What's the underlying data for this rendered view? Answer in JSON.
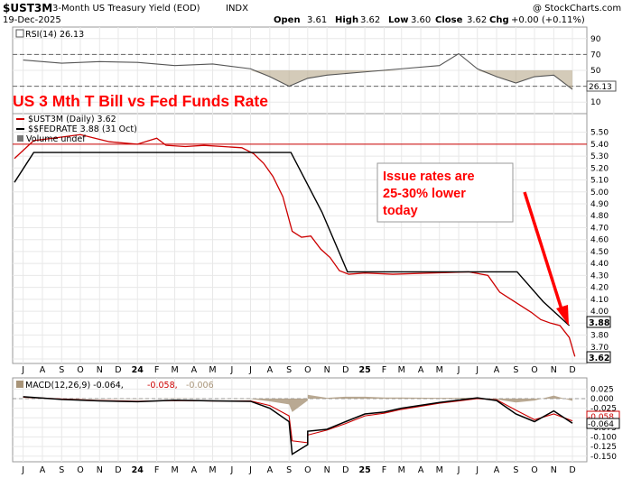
{
  "header": {
    "symbol": "$UST3M",
    "name": "3-Month US Treasury Yield (EOD)",
    "exchange": "INDX",
    "date": "19-Dec-2025",
    "watermark": "@ StockCharts.com",
    "ohlc": {
      "open_label": "Open",
      "open": "3.61",
      "high_label": "High",
      "high": "3.62",
      "low_label": "Low",
      "low": "3.60",
      "close_label": "Close",
      "close": "3.62",
      "chg_label": "Chg",
      "chg": "+0.00 (+0.11%)"
    }
  },
  "colors": {
    "price": "#cc0000",
    "fed": "#000000",
    "rsi": "#555555",
    "rsi_fill": "#b8a88a",
    "macd_line": "#000000",
    "macd_signal": "#cc0000",
    "histogram": "#a89478",
    "annotation": "#ff0000",
    "grid": "#e8e8e8"
  },
  "annotations": {
    "title": "US 3 Mth T Bill vs Fed Funds Rate",
    "note_lines": [
      "Issue rates are",
      "25-30% lower",
      "today"
    ]
  },
  "chart_data": [
    {
      "type": "line",
      "panel": "rsi",
      "legend": "RSI(14) 26.13",
      "last_value_label": "26.13",
      "ylim": [
        0,
        100
      ],
      "y_ticks": [
        "90",
        "70",
        "50",
        "30",
        "10"
      ],
      "reference_lines": [
        70,
        30
      ],
      "series": [
        {
          "name": "RSI(14)",
          "x": [
            "2023-07",
            "2023-09",
            "2023-11",
            "2024-01",
            "2024-03",
            "2024-05",
            "2024-07",
            "2024-08",
            "2024-09",
            "2024-10",
            "2024-11",
            "2025-01",
            "2025-03",
            "2025-05",
            "2025-06",
            "2025-07",
            "2025-08",
            "2025-09",
            "2025-10",
            "2025-11",
            "2025-12"
          ],
          "values": [
            63,
            59,
            61,
            60,
            56,
            58,
            52,
            42,
            30,
            40,
            44,
            48,
            52,
            56,
            71,
            52,
            42,
            34,
            42,
            44,
            26
          ]
        }
      ]
    },
    {
      "type": "line",
      "panel": "price",
      "legend": [
        "$UST3M (Daily) 3.62",
        "$$FEDRATE 3.88 (31 Oct)",
        "Volume undef"
      ],
      "last_value_labels": [
        "3.88",
        "3.62"
      ],
      "ylim": [
        3.6,
        5.55
      ],
      "y_ticks": [
        "5.50",
        "5.40",
        "5.30",
        "5.20",
        "5.10",
        "5.00",
        "4.90",
        "4.80",
        "4.70",
        "4.60",
        "4.50",
        "4.40",
        "4.30",
        "4.20",
        "4.10",
        "4.00",
        "3.90",
        "3.80",
        "3.70",
        "3.60"
      ],
      "horizontal_line": 5.4,
      "series": [
        {
          "name": "$UST3M",
          "x": [
            "2023-07-01",
            "2023-08-01",
            "2023-09-01",
            "2023-10-15",
            "2023-12-01",
            "2024-01-15",
            "2024-02-15",
            "2024-03-01",
            "2024-04-01",
            "2024-05-01",
            "2024-06-01",
            "2024-07-01",
            "2024-07-20",
            "2024-08-05",
            "2024-08-20",
            "2024-09-05",
            "2024-09-20",
            "2024-10-05",
            "2024-10-20",
            "2024-11-05",
            "2024-11-20",
            "2024-12-05",
            "2024-12-20",
            "2025-01-15",
            "2025-03-01",
            "2025-05-01",
            "2025-07-01",
            "2025-08-01",
            "2025-08-20",
            "2025-09-10",
            "2025-09-25",
            "2025-10-10",
            "2025-10-25",
            "2025-11-10",
            "2025-11-25",
            "2025-12-10",
            "2025-12-19"
          ],
          "values": [
            5.28,
            5.43,
            5.45,
            5.48,
            5.42,
            5.4,
            5.45,
            5.39,
            5.38,
            5.39,
            5.38,
            5.37,
            5.32,
            5.24,
            5.13,
            4.96,
            4.67,
            4.62,
            4.63,
            4.52,
            4.45,
            4.34,
            4.31,
            4.32,
            4.31,
            4.32,
            4.33,
            4.3,
            4.16,
            4.09,
            4.04,
            3.99,
            3.93,
            3.9,
            3.88,
            3.78,
            3.62
          ]
        },
        {
          "name": "$$FEDRATE",
          "x": [
            "2023-07-01",
            "2023-08-01",
            "2024-09-18",
            "2024-11-07",
            "2024-12-18",
            "2025-09-17",
            "2025-10-29",
            "2025-12-10"
          ],
          "values": [
            5.08,
            5.33,
            5.33,
            4.83,
            4.33,
            4.33,
            4.08,
            3.88
          ]
        }
      ]
    },
    {
      "type": "line",
      "panel": "macd",
      "legend": [
        "MACD(12,26,9) -0.064,",
        "-0.058,",
        "-0.006"
      ],
      "last_value_labels": [
        "-0.058",
        "-0.064"
      ],
      "ylim": [
        -0.16,
        0.04
      ],
      "y_ticks": [
        "0.025",
        "0.000",
        "-0.025",
        "-0.050",
        "-0.075",
        "-0.100",
        "-0.125",
        "-0.150"
      ],
      "series": [
        {
          "name": "MACD",
          "x": [
            "2023-07",
            "2023-09",
            "2023-11",
            "2024-01",
            "2024-03",
            "2024-05",
            "2024-07",
            "2024-08",
            "2024-09",
            "2024-09-20",
            "2024-10",
            "2024-10-15",
            "2024-11",
            "2024-12",
            "2025-01",
            "2025-02",
            "2025-03",
            "2025-05",
            "2025-07",
            "2025-08",
            "2025-09",
            "2025-10",
            "2025-11",
            "2025-12"
          ],
          "values": [
            0.005,
            -0.002,
            -0.006,
            -0.008,
            -0.004,
            -0.006,
            -0.007,
            -0.025,
            -0.06,
            -0.145,
            -0.12,
            -0.085,
            -0.08,
            -0.06,
            -0.04,
            -0.035,
            -0.025,
            -0.01,
            0.002,
            -0.005,
            -0.04,
            -0.06,
            -0.032,
            -0.064
          ]
        },
        {
          "name": "Signal",
          "x": [
            "2023-07",
            "2023-09",
            "2023-11",
            "2024-01",
            "2024-03",
            "2024-05",
            "2024-07",
            "2024-08",
            "2024-09",
            "2024-09-20",
            "2024-10",
            "2024-10-15",
            "2024-11",
            "2024-12",
            "2025-01",
            "2025-02",
            "2025-03",
            "2025-05",
            "2025-07",
            "2025-08",
            "2025-09",
            "2025-10",
            "2025-11",
            "2025-12"
          ],
          "values": [
            0.004,
            -0.001,
            -0.005,
            -0.007,
            -0.005,
            -0.006,
            -0.006,
            -0.018,
            -0.045,
            -0.11,
            -0.115,
            -0.095,
            -0.082,
            -0.065,
            -0.045,
            -0.038,
            -0.028,
            -0.012,
            0.0,
            -0.003,
            -0.03,
            -0.055,
            -0.04,
            -0.058
          ]
        }
      ]
    }
  ],
  "x_axis_labels": [
    "J",
    "A",
    "S",
    "O",
    "N",
    "D",
    "24",
    "F",
    "M",
    "A",
    "M",
    "J",
    "J",
    "A",
    "S",
    "O",
    "N",
    "D",
    "25",
    "F",
    "M",
    "A",
    "M",
    "J",
    "J",
    "A",
    "S",
    "O",
    "N",
    "D"
  ]
}
